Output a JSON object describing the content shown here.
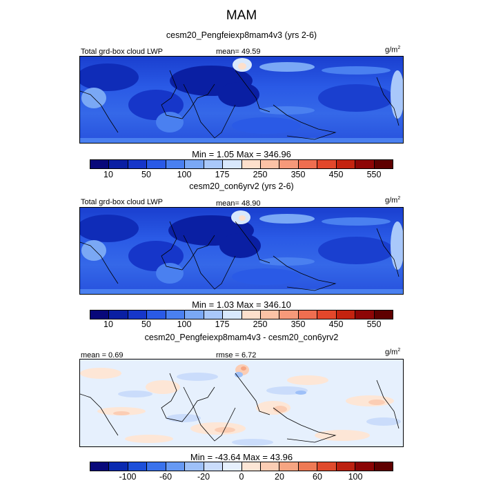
{
  "title": "MAM",
  "units_base": "g/m",
  "units_exp": "2",
  "panels": [
    {
      "subtitle": "cesm20_Pengfeiexp8mam4v3 (yrs 2-6)",
      "left_label": "Total grd-box cloud LWP",
      "center_label": "mean=  49.59",
      "min_max": "Min =    1.05 Max = 346.96"
    },
    {
      "subtitle": "cesm20_con6yrv2 (yrs 2-6)",
      "left_label": "Total grd-box cloud LWP",
      "center_label": "mean=  48.90",
      "min_max": "Min =    1.03 Max = 346.10"
    },
    {
      "subtitle": "cesm20_Pengfeiexp8mam4v3 - cesm20_con6yrv2",
      "left_label": "mean =   0.69",
      "center_label": "rmse =   6.72",
      "min_max": "Min = -43.64 Max =  43.96"
    }
  ],
  "colorbar_field": {
    "colors": [
      "#08087a",
      "#0a1fa3",
      "#1636c9",
      "#2a5ae6",
      "#4a80f0",
      "#7aa8f5",
      "#a9c8fa",
      "#d8e8fc",
      "#fde0cc",
      "#fbc2a6",
      "#f6997a",
      "#ef6e50",
      "#e3472b",
      "#c4230f",
      "#8e0606",
      "#5f0000"
    ],
    "tick_labels": [
      "10",
      "50",
      "100",
      "175",
      "250",
      "350",
      "450",
      "550"
    ]
  },
  "colorbar_diff": {
    "colors": [
      "#08087a",
      "#0a2ab0",
      "#1c4fd9",
      "#3a72ec",
      "#6799f3",
      "#9ec0f8",
      "#cadcfb",
      "#e6f0fd",
      "#fde6d6",
      "#fbcdb4",
      "#f6a582",
      "#ee7a55",
      "#df4a2c",
      "#bc200f",
      "#8a0404",
      "#5f0000"
    ],
    "tick_labels": [
      "-100",
      "-60",
      "-20",
      "0",
      "20",
      "60",
      "100"
    ]
  }
}
